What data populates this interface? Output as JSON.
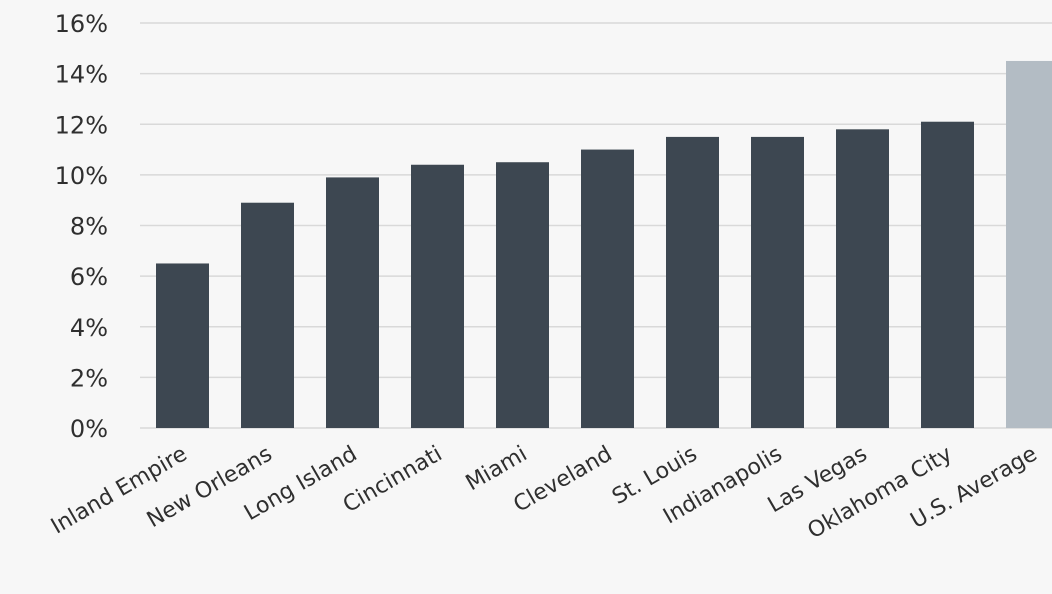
{
  "colors": {
    "bar": "#3d4751",
    "highlight_bar": "#b3bcc4",
    "grid": "#d9d9d9",
    "background": "#f7f7f7",
    "text": "#2f2f2f"
  },
  "chart_data": {
    "type": "bar",
    "title": "",
    "xlabel": "",
    "ylabel": "",
    "ylim": [
      0,
      16
    ],
    "y_tick_values": [
      0,
      2,
      4,
      6,
      8,
      10,
      12,
      14,
      16
    ],
    "y_tick_labels": [
      "0%",
      "2%",
      "4%",
      "6%",
      "8%",
      "10%",
      "12%",
      "14%",
      "16%"
    ],
    "grid": true,
    "legend": "none",
    "categories": [
      "Inland Empire",
      "New Orleans",
      "Long Island",
      "Cincinnati",
      "Miami",
      "Cleveland",
      "St. Louis",
      "Indianapolis",
      "Las Vegas",
      "Oklahoma City",
      "U.S. Average"
    ],
    "values": [
      6.5,
      8.9,
      9.9,
      10.4,
      10.5,
      11.0,
      11.5,
      11.5,
      11.8,
      12.1,
      14.5
    ],
    "highlighted_category": "U.S. Average"
  }
}
